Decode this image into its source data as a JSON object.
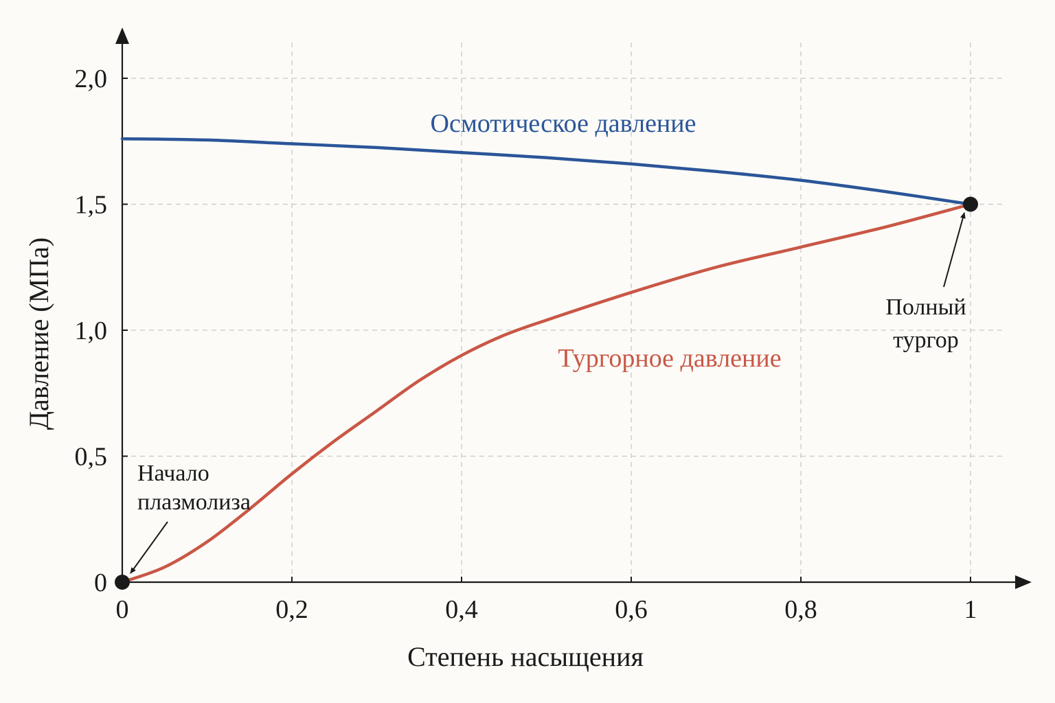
{
  "chart_data": {
    "type": "line",
    "xlabel": "Степень насыщения",
    "ylabel": "Давление (МПа)",
    "xlim": [
      0,
      1
    ],
    "ylim": [
      0,
      2.0
    ],
    "x_ticks": [
      {
        "value": 0,
        "label": "0"
      },
      {
        "value": 0.2,
        "label": "0,2"
      },
      {
        "value": 0.4,
        "label": "0,4"
      },
      {
        "value": 0.6,
        "label": "0,6"
      },
      {
        "value": 0.8,
        "label": "0,8"
      },
      {
        "value": 1,
        "label": "1"
      }
    ],
    "y_ticks": [
      {
        "value": 0,
        "label": "0"
      },
      {
        "value": 0.5,
        "label": "0,5"
      },
      {
        "value": 1.0,
        "label": "1,0"
      },
      {
        "value": 1.5,
        "label": "1,5"
      },
      {
        "value": 2.0,
        "label": "2,0"
      }
    ],
    "grid": true,
    "series": [
      {
        "name": "Осмотическое давление",
        "color": "#2b5599",
        "x": [
          0,
          0.1,
          0.2,
          0.3,
          0.4,
          0.5,
          0.6,
          0.7,
          0.8,
          0.9,
          1.0
        ],
        "y": [
          1.76,
          1.755,
          1.74,
          1.725,
          1.705,
          1.685,
          1.66,
          1.63,
          1.595,
          1.55,
          1.5
        ]
      },
      {
        "name": "Тургорное давление",
        "color": "#c95746",
        "x": [
          0,
          0.05,
          0.1,
          0.15,
          0.2,
          0.25,
          0.3,
          0.35,
          0.4,
          0.45,
          0.5,
          0.6,
          0.7,
          0.8,
          0.9,
          1.0
        ],
        "y": [
          0,
          0.06,
          0.16,
          0.29,
          0.43,
          0.56,
          0.68,
          0.8,
          0.9,
          0.98,
          1.04,
          1.15,
          1.25,
          1.33,
          1.41,
          1.5
        ]
      }
    ],
    "annotations": [
      {
        "text": [
          "Начало",
          "плазмолиза"
        ],
        "x": 0,
        "y": 0
      },
      {
        "text": [
          "Полный",
          "тургор"
        ],
        "x": 1,
        "y": 1.5
      }
    ]
  }
}
